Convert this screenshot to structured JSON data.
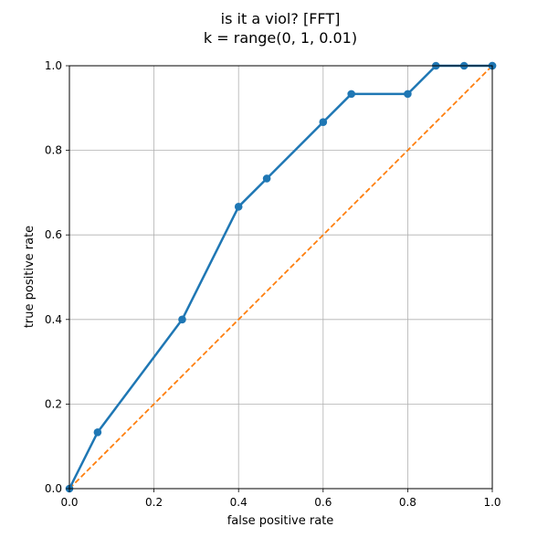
{
  "chart_data": {
    "type": "line",
    "title": "is it a viol? [FFT]",
    "subtitle": "k = range(0, 1, 0.01)",
    "xlabel": "false positive rate",
    "ylabel": "true positive rate",
    "xlim": [
      0.0,
      1.0
    ],
    "ylim": [
      0.0,
      1.0
    ],
    "x_ticks": [
      "0.0",
      "0.2",
      "0.4",
      "0.6",
      "0.8",
      "1.0"
    ],
    "y_ticks": [
      "0.0",
      "0.2",
      "0.4",
      "0.6",
      "0.8",
      "1.0"
    ],
    "grid": true,
    "series": [
      {
        "style": "solid",
        "markers": true,
        "color": "#1f77b4",
        "x": [
          0.0,
          0.0667,
          0.2667,
          0.4,
          0.4667,
          0.6,
          0.6667,
          0.8,
          0.8667,
          0.9333,
          1.0,
          1.0
        ],
        "y": [
          0.0,
          0.1333,
          0.4,
          0.6667,
          0.7333,
          0.8667,
          0.9333,
          0.9333,
          1.0,
          1.0,
          1.0,
          1.0
        ]
      },
      {
        "style": "dashed",
        "markers": false,
        "color": "#ff7f0e",
        "x": [
          0.0,
          1.0
        ],
        "y": [
          0.0,
          1.0
        ]
      }
    ]
  }
}
